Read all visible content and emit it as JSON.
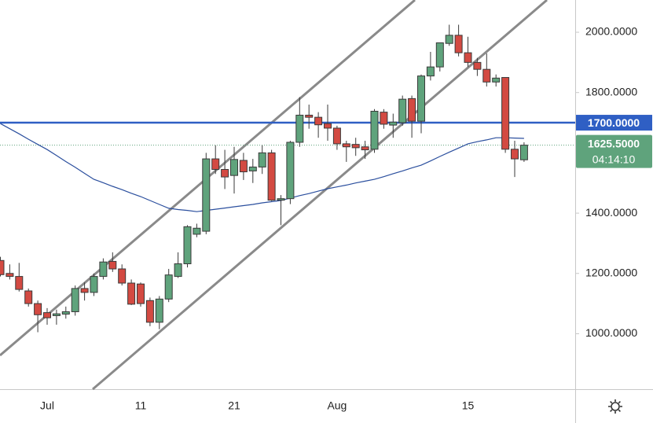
{
  "chart_data": {
    "type": "candlestick",
    "categories": [
      null,
      null,
      null,
      null,
      null,
      "Jul",
      null,
      null,
      null,
      null,
      null,
      null,
      null,
      null,
      null,
      "11",
      null,
      null,
      null,
      null,
      null,
      null,
      null,
      null,
      null,
      "21",
      null,
      null,
      null,
      null,
      null,
      null,
      null,
      null,
      null,
      null,
      "Aug",
      null,
      null,
      null,
      null,
      null,
      null,
      null,
      null,
      null,
      null,
      null,
      null,
      null,
      "15",
      null,
      null,
      null,
      null,
      null,
      null
    ],
    "open": [
      1243,
      1200,
      1190,
      1142,
      1100,
      1070,
      1060,
      1065,
      1073,
      1150,
      1137,
      1190,
      1240,
      1215,
      1168,
      1165,
      1110,
      1038,
      1115,
      1190,
      1232,
      1330,
      1340,
      1580,
      1545,
      1525,
      1575,
      1540,
      1553,
      1600,
      1443,
      1448,
      1635,
      1725,
      1718,
      1697,
      1682,
      1630,
      1628,
      1620,
      1612,
      1735,
      1692,
      1700,
      1780,
      1705,
      1855,
      1885,
      1963,
      1990,
      1932,
      1900,
      1877,
      1835,
      1850,
      1612,
      1577
    ],
    "high": [
      1255,
      1230,
      1235,
      1150,
      1110,
      1085,
      1080,
      1090,
      1160,
      1170,
      1200,
      1250,
      1270,
      1230,
      1180,
      1170,
      1120,
      1125,
      1215,
      1270,
      1360,
      1365,
      1600,
      1625,
      1610,
      1620,
      1600,
      1580,
      1625,
      1610,
      1460,
      1640,
      1785,
      1760,
      1735,
      1760,
      1690,
      1640,
      1650,
      1640,
      1745,
      1745,
      1730,
      1790,
      1790,
      1860,
      1935,
      1965,
      2025,
      2025,
      1985,
      1915,
      1930,
      1860,
      1850,
      1640,
      1635
    ],
    "low": [
      1190,
      1180,
      1140,
      1090,
      1005,
      1030,
      1030,
      1050,
      1060,
      1110,
      1125,
      1180,
      1205,
      1160,
      1095,
      1090,
      1025,
      1015,
      1105,
      1185,
      1220,
      1320,
      1330,
      1530,
      1480,
      1465,
      1510,
      1500,
      1530,
      1440,
      1360,
      1430,
      1620,
      1680,
      1650,
      1640,
      1610,
      1570,
      1590,
      1580,
      1600,
      1680,
      1650,
      1690,
      1650,
      1665,
      1840,
      1870,
      1955,
      1920,
      1885,
      1855,
      1820,
      1820,
      1600,
      1520,
      1570
    ],
    "close": [
      1196,
      1190,
      1147,
      1100,
      1063,
      1053,
      1066,
      1073,
      1150,
      1137,
      1190,
      1238,
      1215,
      1168,
      1098,
      1100,
      1038,
      1115,
      1195,
      1232,
      1355,
      1350,
      1580,
      1545,
      1520,
      1578,
      1537,
      1553,
      1600,
      1443,
      1448,
      1635,
      1725,
      1718,
      1693,
      1682,
      1630,
      1620,
      1617,
      1610,
      1738,
      1695,
      1702,
      1778,
      1705,
      1855,
      1885,
      1965,
      1990,
      1932,
      1900,
      1877,
      1835,
      1848,
      1612,
      1580,
      1625.5
    ],
    "up_color": "#5fa37c",
    "down_color": "#d34a42",
    "average": {
      "color": "#2b4f9e",
      "values": [
        1697,
        1680,
        1663,
        1645,
        1628,
        1611,
        1591,
        1571,
        1552,
        1532,
        1512,
        1501,
        1489,
        1478,
        1466,
        1455,
        1442,
        1429,
        1416,
        1412,
        1409,
        1405,
        1409,
        1413,
        1417,
        1421,
        1425,
        1429,
        1434,
        1438,
        1442,
        1450,
        1458,
        1465,
        1473,
        1481,
        1487,
        1493,
        1500,
        1506,
        1512,
        1521,
        1531,
        1540,
        1550,
        1559,
        1573,
        1588,
        1602,
        1616,
        1630,
        1637,
        1643,
        1650,
        1650,
        1649,
        1648
      ]
    },
    "horizontal_line": {
      "value": 1700,
      "label": "1700.0000",
      "color": "#2f5fc4"
    },
    "last_price": {
      "value": 1625.5,
      "label": "1625.5000",
      "countdown": "04:14:10"
    },
    "ylim": [
      816,
      2107
    ],
    "yticks": [
      {
        "value": 1000,
        "label": "1000.0000"
      },
      {
        "value": 1200,
        "label": "1200.0000"
      },
      {
        "value": 1400,
        "label": "1400.0000"
      },
      {
        "value": 1800,
        "label": "1800.0000"
      },
      {
        "value": 2000,
        "label": "2000.0000"
      }
    ]
  }
}
